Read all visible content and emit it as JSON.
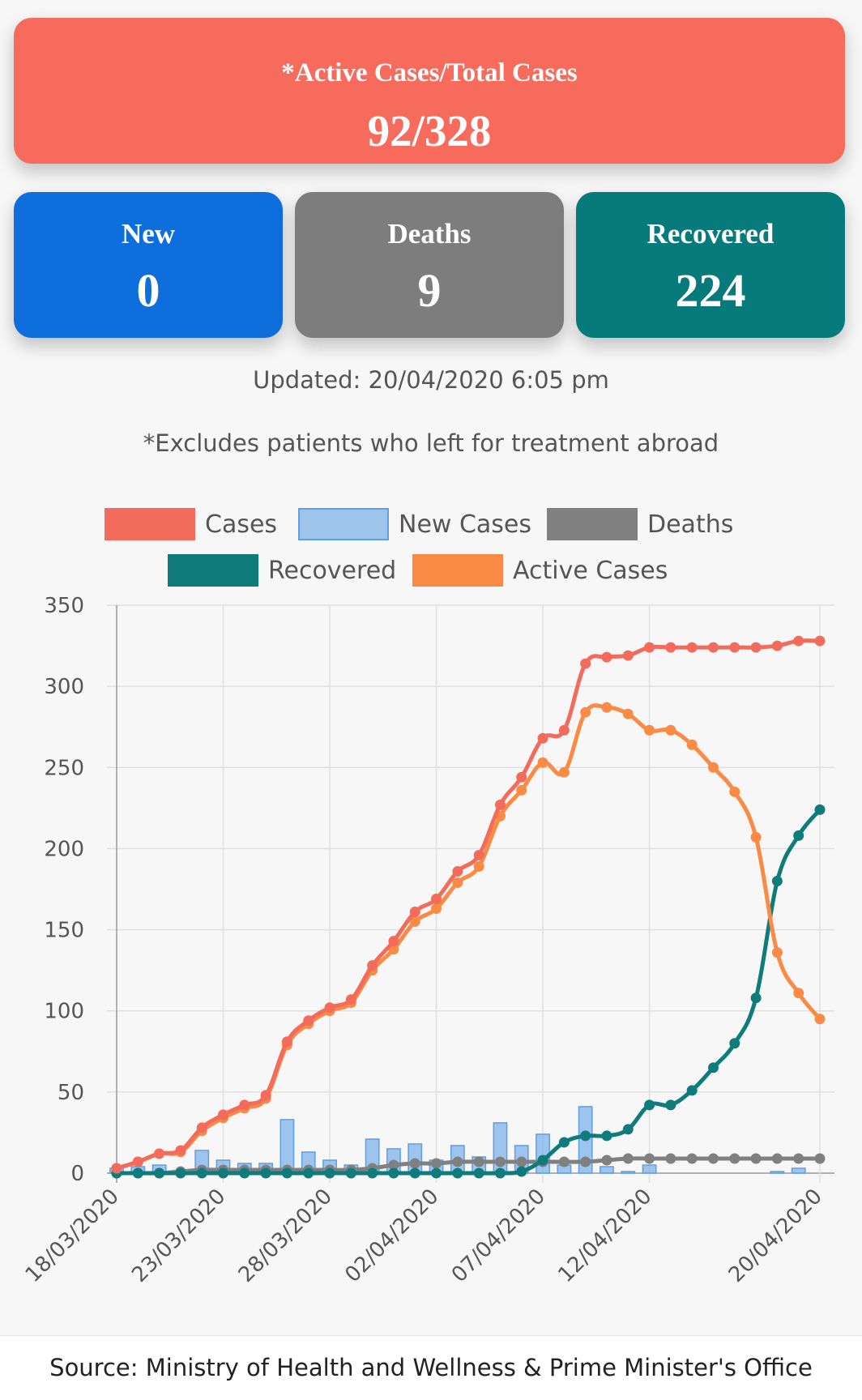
{
  "header": {
    "label": "*Active Cases/Total Cases",
    "value": "92/328"
  },
  "stats": {
    "new": {
      "label": "New",
      "value": "0"
    },
    "deaths": {
      "label": "Deaths",
      "value": "9"
    },
    "recovered": {
      "label": "Recovered",
      "value": "224"
    }
  },
  "updated": "Updated: 20/04/2020 6:05 pm",
  "excludes_note": "*Excludes patients who left for treatment abroad",
  "source": "Source: Ministry of Health and Wellness & Prime Minister's Office",
  "colors": {
    "header": "#f76b5d",
    "new": "#0e6fdc",
    "deaths": "#7d7d7d",
    "recovered": "#077b7c"
  },
  "chart_data": {
    "type": "line",
    "x": [
      "18/03/2020",
      "19/03/2020",
      "20/03/2020",
      "21/03/2020",
      "22/03/2020",
      "23/03/2020",
      "24/03/2020",
      "25/03/2020",
      "26/03/2020",
      "27/03/2020",
      "28/03/2020",
      "29/03/2020",
      "30/03/2020",
      "31/03/2020",
      "01/04/2020",
      "02/04/2020",
      "03/04/2020",
      "04/04/2020",
      "05/04/2020",
      "06/04/2020",
      "07/04/2020",
      "08/04/2020",
      "09/04/2020",
      "10/04/2020",
      "11/04/2020",
      "12/04/2020",
      "13/04/2020",
      "14/04/2020",
      "15/04/2020",
      "16/04/2020",
      "17/04/2020",
      "18/04/2020",
      "19/04/2020",
      "20/04/2020"
    ],
    "xtick_labels": [
      "18/03/2020",
      "23/03/2020",
      "28/03/2020",
      "02/04/2020",
      "07/04/2020",
      "12/04/2020",
      "20/04/2020"
    ],
    "ylim": [
      0,
      350
    ],
    "yticks": [
      0,
      50,
      100,
      150,
      200,
      250,
      300,
      350
    ],
    "grid": true,
    "legend_position": "top",
    "series": [
      {
        "name": "Cases",
        "kind": "line",
        "color": "#f36b5b",
        "values": [
          3,
          7,
          12,
          14,
          28,
          36,
          42,
          48,
          81,
          94,
          102,
          107,
          128,
          143,
          161,
          169,
          186,
          196,
          227,
          244,
          268,
          273,
          314,
          318,
          319,
          324,
          324,
          324,
          324,
          324,
          324,
          325,
          328,
          328
        ]
      },
      {
        "name": "New Cases",
        "kind": "bar",
        "color": "#7fb3ea",
        "values": [
          3,
          4,
          5,
          0,
          14,
          8,
          6,
          6,
          33,
          13,
          8,
          5,
          21,
          15,
          18,
          8,
          17,
          10,
          31,
          17,
          24,
          5,
          41,
          4,
          1,
          5,
          0,
          0,
          0,
          0,
          0,
          1,
          3,
          0
        ]
      },
      {
        "name": "Deaths",
        "kind": "line",
        "color": "#808080",
        "values": [
          0,
          0,
          0,
          1,
          2,
          2,
          2,
          2,
          2,
          2,
          2,
          2,
          3,
          5,
          6,
          6,
          7,
          7,
          7,
          7,
          7,
          7,
          7,
          8,
          9,
          9,
          9,
          9,
          9,
          9,
          9,
          9,
          9,
          9
        ]
      },
      {
        "name": "Recovered",
        "kind": "line",
        "color": "#0f7b7b",
        "values": [
          0,
          0,
          0,
          0,
          0,
          0,
          0,
          0,
          0,
          0,
          0,
          0,
          0,
          0,
          0,
          0,
          0,
          0,
          0,
          1,
          8,
          19,
          23,
          23,
          27,
          42,
          42,
          51,
          65,
          80,
          108,
          180,
          208,
          224
        ]
      },
      {
        "name": "Active Cases",
        "kind": "line",
        "color": "#fb8a45",
        "values": [
          3,
          7,
          12,
          13,
          26,
          34,
          40,
          46,
          79,
          92,
          100,
          105,
          125,
          138,
          155,
          163,
          179,
          189,
          220,
          236,
          253,
          247,
          284,
          287,
          283,
          273,
          273,
          264,
          250,
          235,
          207,
          136,
          111,
          95
        ]
      }
    ]
  }
}
